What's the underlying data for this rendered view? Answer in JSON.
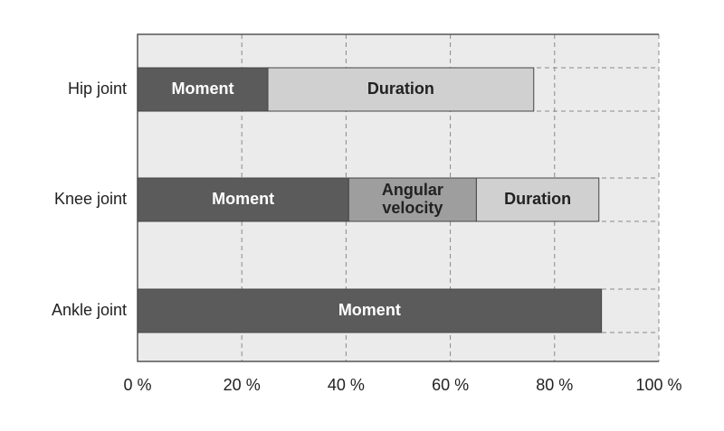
{
  "chart_data": {
    "type": "stacked-bar-horizontal",
    "categories": [
      "Hip joint",
      "Knee joint",
      "Ankle joint"
    ],
    "series": [
      {
        "name": "Moment",
        "color": "#5b5b5b",
        "values": [
          25,
          40.5,
          89
        ]
      },
      {
        "name": "Angular velocity",
        "color": "#9e9e9e",
        "values": [
          null,
          24.5,
          null
        ]
      },
      {
        "name": "Duration",
        "color": "#d0d0d0",
        "values": [
          51,
          23.5,
          null
        ]
      }
    ],
    "xlim": [
      0,
      100
    ],
    "xticks": [
      {
        "value": 0,
        "label": "0 %"
      },
      {
        "value": 20,
        "label": "20 %"
      },
      {
        "value": 40,
        "label": "40 %"
      },
      {
        "value": 60,
        "label": "60 %"
      },
      {
        "value": 80,
        "label": "80 %"
      },
      {
        "value": 100,
        "label": "100 %"
      }
    ],
    "grid": true
  }
}
